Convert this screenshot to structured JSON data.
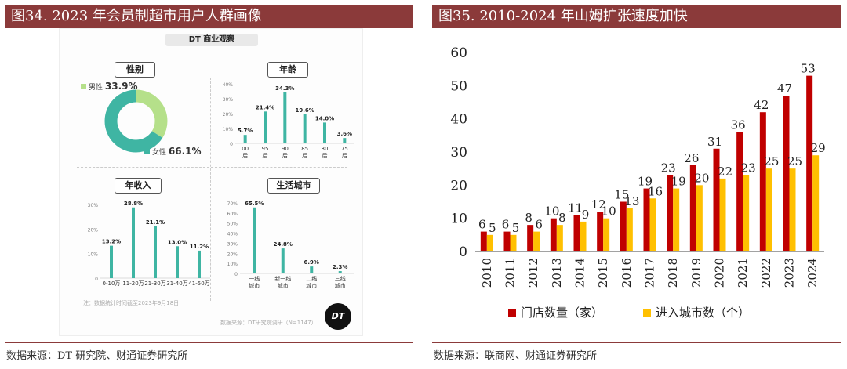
{
  "left_panel": {
    "title": "图34. 2023 年会员制超市用户人群画像",
    "source": "数据来源：DT 研究院、财通证券研究所",
    "header": "DT 商业观察",
    "note": "注：数据统计时间截至2023年9月18日",
    "credit": "数据来源：DT研究院调研（N=1147）",
    "logo": "DT",
    "colors": {
      "teal": "#3fb5a3",
      "light_green": "#b5e08a"
    }
  },
  "right_panel": {
    "title": "图35. 2010-2024 年山姆扩张速度加快",
    "source": "数据来源：联商网、财通证券研究所",
    "colors": {
      "store": "#c00000",
      "city": "#ffc000"
    }
  },
  "chart_data": [
    {
      "type": "pie",
      "title": "性别",
      "categories": [
        "男性",
        "女性"
      ],
      "values": [
        33.9,
        66.1
      ],
      "value_labels": [
        "33.9%",
        "66.1%"
      ],
      "colors": [
        "#b5e08a",
        "#3fb5a3"
      ]
    },
    {
      "type": "bar",
      "title": "年龄",
      "categories": [
        "00后",
        "95后",
        "90后",
        "85后",
        "80后",
        "75后"
      ],
      "category_lines": [
        [
          "00",
          "后"
        ],
        [
          "95",
          "后"
        ],
        [
          "90",
          "后"
        ],
        [
          "85",
          "后"
        ],
        [
          "80",
          "后"
        ],
        [
          "75",
          "后"
        ]
      ],
      "values": [
        5.7,
        21.4,
        34.3,
        19.6,
        14.0,
        3.6
      ],
      "value_labels": [
        "5.7%",
        "21.4%",
        "34.3%",
        "19.6%",
        "14.0%",
        "3.6%"
      ],
      "yticks": [
        "0",
        "10%",
        "20%",
        "30%",
        "40%"
      ],
      "ylim": [
        0,
        40
      ]
    },
    {
      "type": "bar",
      "title": "年收入",
      "categories": [
        "0-10万",
        "11-20万",
        "21-30万",
        "31-40万",
        "41-50万"
      ],
      "values": [
        13.2,
        28.8,
        21.1,
        13.0,
        11.2
      ],
      "value_labels": [
        "13.2%",
        "28.8%",
        "21.1%",
        "13.0%",
        "11.2%"
      ],
      "yticks": [
        "0",
        "10%",
        "20%",
        "30%"
      ],
      "ylim": [
        0,
        30
      ]
    },
    {
      "type": "bar",
      "title": "生活城市",
      "categories": [
        "一线城市",
        "新一线城市",
        "二线城市",
        "三线城市"
      ],
      "category_lines": [
        [
          "一线",
          "城市"
        ],
        [
          "新一线",
          "城市"
        ],
        [
          "二线",
          "城市"
        ],
        [
          "三线",
          "城市"
        ]
      ],
      "values": [
        65.5,
        24.8,
        6.9,
        2.3
      ],
      "value_labels": [
        "65.5%",
        "24.8%",
        "6.9%",
        "2.3%"
      ],
      "yticks": [
        "0",
        "10%",
        "20%",
        "30%",
        "40%",
        "50%",
        "60%",
        "70%"
      ],
      "ylim": [
        0,
        70
      ]
    },
    {
      "type": "bar",
      "categories": [
        "2010",
        "2011",
        "2012",
        "2013",
        "2014",
        "2015",
        "2016",
        "2017",
        "2018",
        "2019",
        "2020",
        "2021",
        "2022",
        "2023",
        "2024"
      ],
      "series": [
        {
          "name": "门店数量（家）",
          "values": [
            6,
            6,
            8,
            10,
            11,
            12,
            15,
            19,
            23,
            26,
            31,
            36,
            42,
            47,
            53
          ],
          "color": "#c00000"
        },
        {
          "name": "进入城市数（个）",
          "values": [
            5,
            5,
            6,
            8,
            9,
            10,
            13,
            16,
            19,
            20,
            22,
            23,
            25,
            25,
            29
          ],
          "color": "#ffc000"
        }
      ],
      "yticks": [
        "0",
        "10",
        "20",
        "30",
        "40",
        "50",
        "60"
      ],
      "ylim": [
        0,
        60
      ],
      "legend": "bottom"
    }
  ]
}
